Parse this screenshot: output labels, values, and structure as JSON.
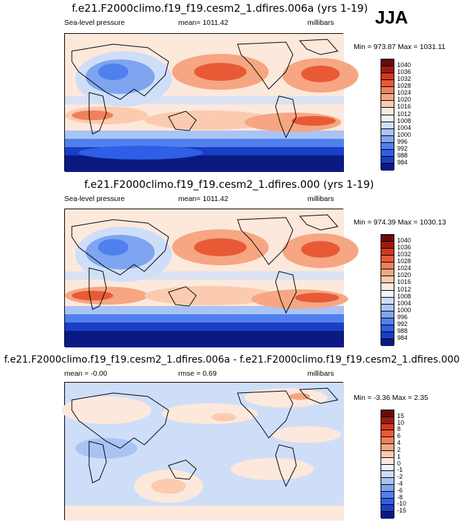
{
  "season": "JJA",
  "palette_abs": [
    "#0a1a82",
    "#1a3fc4",
    "#2e5fe6",
    "#4f80ee",
    "#7fa5f0",
    "#a9c4f4",
    "#cfdef8",
    "#eef4fd",
    "#fde8dc",
    "#fbcbb0",
    "#f6a682",
    "#f0805a",
    "#e85a36",
    "#d4381e",
    "#a01a0f",
    "#6b0a0a"
  ],
  "palette_diff": [
    "#0a1a82",
    "#1a3fc4",
    "#2e5fe6",
    "#4f80ee",
    "#7fa5f0",
    "#a9c4f4",
    "#cfdef8",
    "#eef4fd",
    "#fde8dc",
    "#fbcbb0",
    "#f6a682",
    "#f0805a",
    "#e85a36",
    "#d4381e",
    "#a01a0f",
    "#6b0a0a"
  ],
  "panels": [
    {
      "title": "f.e21.F2000climo.f19_f19.cesm2_1.dfires.006a (yrs 1-19)",
      "left": "Sea-level pressure",
      "center": "mean= 1011.42",
      "right": "millibars",
      "minmax": "Min = 973.87 Max = 1031.11",
      "ticks": [
        "1040",
        "1036",
        "1032",
        "1028",
        "1024",
        "1020",
        "1016",
        "1012",
        "1008",
        "1004",
        "1000",
        "996",
        "992",
        "988",
        "984"
      ]
    },
    {
      "title": "f.e21.F2000climo.f19_f19.cesm2_1.dfires.000 (yrs 1-19)",
      "left": "Sea-level pressure",
      "center": "mean= 1011.42",
      "right": "millibars",
      "minmax": "Min = 974.39 Max = 1030.13",
      "ticks": [
        "1040",
        "1036",
        "1032",
        "1028",
        "1024",
        "1020",
        "1016",
        "1012",
        "1008",
        "1004",
        "1000",
        "996",
        "992",
        "988",
        "984"
      ]
    },
    {
      "title": "f.e21.F2000climo.f19_f19.cesm2_1.dfires.006a - f.e21.F2000climo.f19_f19.cesm2_1.dfires.000",
      "left": "mean =  -0.00",
      "center": "rmse =   0.69",
      "right": "millibars",
      "minmax": "Min =  -3.36 Max =   2.35",
      "ticks": [
        "15",
        "10",
        "8",
        "6",
        "4",
        "2",
        "1",
        "0",
        "-1",
        "-2",
        "-4",
        "-6",
        "-8",
        "-10",
        "-15"
      ]
    }
  ]
}
